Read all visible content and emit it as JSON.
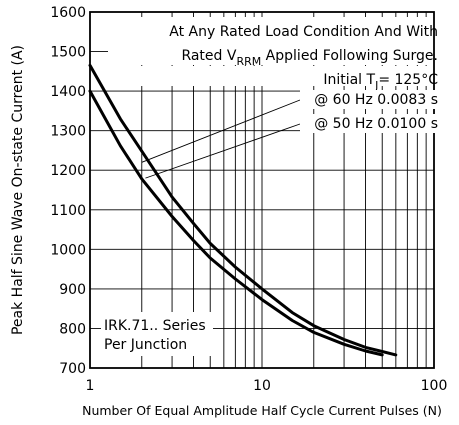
{
  "chart_data": {
    "type": "line",
    "xlabel": "Number Of Equal Amplitude Half Cycle Current Pulses (N)",
    "ylabel": "Peak Half Sine Wave On-state Current (A)",
    "xscale": "log",
    "xlim": [
      1,
      100
    ],
    "ylim": [
      700,
      1600
    ],
    "grid": true,
    "x_ticks": [
      "1",
      "10",
      "100"
    ],
    "y_ticks": [
      "1600",
      "1500",
      "1400",
      "1300",
      "1200",
      "1100",
      "1000",
      "900",
      "800",
      "700"
    ],
    "annotations": {
      "condition_line1": "At Any Rated Load Condition And With",
      "condition_line2_prefix": "Rated V",
      "condition_line2_sub": "RRM",
      "condition_line2_suffix": " Applied Following Surge.",
      "tj_prefix": "Initial T",
      "tj_sub": "J",
      "tj_suffix": "= 125°C",
      "label_60hz": "@ 60 Hz 0.0083 s",
      "label_50hz": "@ 50 Hz 0.0100 s",
      "series_line1": "IRK.71.. Series",
      "series_line2": "Per Junction"
    },
    "series": [
      {
        "x": [
          1,
          1.5,
          2,
          3,
          4,
          5,
          7,
          10,
          15,
          20,
          30,
          40,
          60
        ],
        "y": [
          1465,
          1330,
          1248,
          1132,
          1065,
          1015,
          955,
          900,
          840,
          807,
          772,
          752,
          733
        ]
      },
      {
        "x": [
          1,
          1.5,
          2,
          3,
          4,
          5,
          7,
          10,
          15,
          20,
          30,
          40,
          50
        ],
        "y": [
          1400,
          1262,
          1178,
          1083,
          1022,
          978,
          925,
          873,
          820,
          790,
          760,
          743,
          733
        ]
      }
    ]
  }
}
